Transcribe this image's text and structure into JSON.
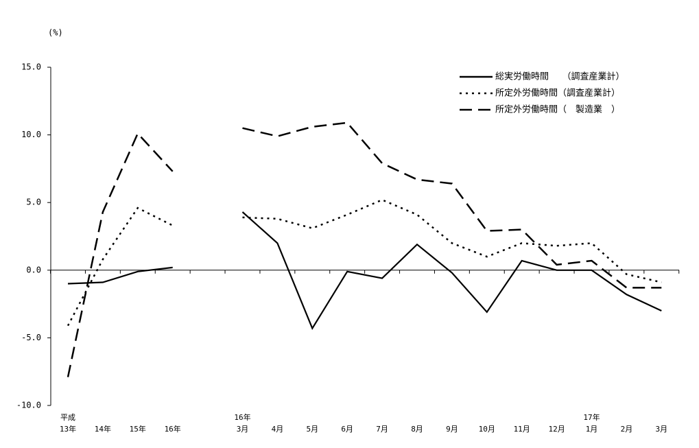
{
  "chart_data": {
    "type": "line",
    "y_label": "(%)",
    "categories": [
      [
        "平成",
        "13年"
      ],
      [
        "14年"
      ],
      [
        "15年"
      ],
      [
        "16年"
      ],
      null,
      [
        "16年",
        "3月"
      ],
      [
        "4月"
      ],
      [
        "5月"
      ],
      [
        "6月"
      ],
      [
        "7月"
      ],
      [
        "8月"
      ],
      [
        "9月"
      ],
      [
        "10月"
      ],
      [
        "11月"
      ],
      [
        "12月"
      ],
      [
        "17年",
        "1月"
      ],
      [
        "2月"
      ],
      [
        "3月"
      ]
    ],
    "series": [
      {
        "name": "総実労働時間　　（調査産業計）",
        "color": "#000000",
        "line_style": "solid",
        "values": [
          -1.0,
          -0.9,
          -0.1,
          0.2,
          null,
          4.3,
          2.0,
          -4.3,
          -0.1,
          -0.6,
          1.9,
          -0.2,
          -3.1,
          0.7,
          0.0,
          0.0,
          -1.8,
          -3.0
        ]
      },
      {
        "name": "所定外労働時間（調査産業計）",
        "color": "#000000",
        "line_style": "dotted",
        "values": [
          -4.1,
          0.8,
          4.6,
          3.3,
          null,
          3.9,
          3.8,
          3.1,
          4.1,
          5.2,
          4.1,
          2.0,
          1.0,
          2.0,
          1.8,
          2.0,
          -0.3,
          -0.9
        ]
      },
      {
        "name": "所定外労働時間（　製造業　）",
        "color": "#000000",
        "line_style": "dashed",
        "values": [
          -7.9,
          4.3,
          10.1,
          7.3,
          null,
          10.5,
          9.9,
          10.6,
          10.9,
          7.9,
          6.7,
          6.4,
          2.9,
          3.0,
          0.4,
          0.7,
          -1.3,
          -1.3
        ]
      }
    ],
    "ylim": [
      -10,
      15
    ],
    "yticks": [
      {
        "value": -10,
        "label": "-10.0"
      },
      {
        "value": -5,
        "label": "-5.0"
      },
      {
        "value": 0,
        "label": "0.0"
      },
      {
        "value": 5,
        "label": "5.0"
      },
      {
        "value": 10,
        "label": "10.0"
      },
      {
        "value": 15,
        "label": "15.0"
      }
    ],
    "legend": "upper-right"
  }
}
